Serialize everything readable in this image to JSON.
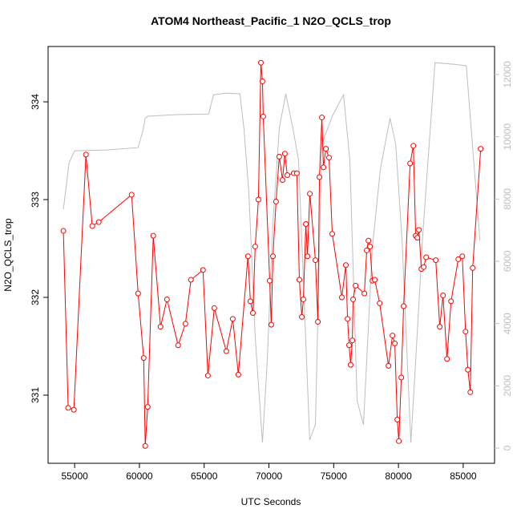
{
  "chart_data": {
    "type": "line",
    "title": "ATOM4 Northeast_Pacific_1 N2O_QCLS_trop",
    "x_label": "UTC Seconds",
    "y_label": "N2O_QCLS_trop",
    "xlim": [
      52950,
      87420
    ],
    "xticks": [
      55000,
      60000,
      65000,
      70000,
      75000,
      80000,
      85000
    ],
    "ylim": [
      330.303,
      334.566
    ],
    "yticks": [
      331,
      332,
      333,
      334
    ],
    "y2lim": [
      -490,
      12900
    ],
    "y2ticks": [
      0,
      2000,
      4000,
      6000,
      8000,
      10000,
      12000
    ],
    "series": [
      {
        "color": "#bebebe",
        "axis": "y2",
        "markers": false,
        "x": [
          54130,
          54570,
          55000,
          57480,
          59890,
          60270,
          60450,
          60640,
          62870,
          65350,
          65720,
          66710,
          67760,
          68070,
          68450,
          68940,
          69500,
          69870,
          70300,
          70800,
          71300,
          71850,
          72290,
          73150,
          73590,
          74080,
          74890,
          75760,
          76250,
          76810,
          77300,
          77980,
          78610,
          79350,
          79790,
          80280,
          80960,
          81330,
          81890,
          82820,
          84250,
          85240,
          86290
        ],
        "values": [
          7670,
          9160,
          9550,
          9575,
          9650,
          10190,
          10600,
          10660,
          10710,
          10730,
          11350,
          11400,
          11380,
          10270,
          8210,
          3580,
          180,
          2800,
          7180,
          10270,
          11380,
          10270,
          9240,
          260,
          750,
          9760,
          10660,
          11350,
          9240,
          1520,
          750,
          6410,
          8980,
          10600,
          9760,
          6670,
          180,
          2800,
          6920,
          12380,
          12330,
          12280,
          6670
        ]
      },
      {
        "color": "#ff0000",
        "markers": true,
        "x": [
          54130,
          54500,
          54940,
          55870,
          56360,
          56860,
          59400,
          59900,
          60330,
          60450,
          60640,
          61070,
          61630,
          62130,
          62990,
          63550,
          63980,
          64910,
          65290,
          65780,
          66710,
          67210,
          67640,
          68380,
          68570,
          68760,
          68940,
          69190,
          69380,
          69500,
          69560,
          70060,
          70180,
          70310,
          70550,
          70800,
          71050,
          71230,
          71420,
          71920,
          72160,
          72350,
          72540,
          72660,
          72850,
          72970,
          73160,
          73590,
          73780,
          73900,
          74090,
          74210,
          74400,
          74640,
          74890,
          75630,
          75940,
          76070,
          76190,
          76310,
          76440,
          76500,
          76690,
          77370,
          77550,
          77680,
          77800,
          77990,
          78170,
          78550,
          79230,
          79540,
          79720,
          79910,
          80030,
          80220,
          80400,
          80900,
          81150,
          81330,
          81460,
          81580,
          81770,
          81950,
          82140,
          82880,
          83190,
          83440,
          83750,
          84060,
          84620,
          84930,
          85180,
          85360,
          85550,
          85730,
          86350
        ],
        "values": [
          332.68,
          330.87,
          330.85,
          333.46,
          332.73,
          332.77,
          333.05,
          332.04,
          331.38,
          330.48,
          330.88,
          332.63,
          331.7,
          331.98,
          331.51,
          331.73,
          332.18,
          332.28,
          331.2,
          331.89,
          331.45,
          331.78,
          331.21,
          332.42,
          331.96,
          331.84,
          332.52,
          333.0,
          334.4,
          334.21,
          333.85,
          332.17,
          331.72,
          332.42,
          332.98,
          333.44,
          333.2,
          333.47,
          333.25,
          333.27,
          333.27,
          332.18,
          331.8,
          331.98,
          332.75,
          332.42,
          333.06,
          332.38,
          331.75,
          333.23,
          333.84,
          333.33,
          333.52,
          333.43,
          332.65,
          332.0,
          332.33,
          331.78,
          331.51,
          331.31,
          331.56,
          331.98,
          332.12,
          332.04,
          332.48,
          332.58,
          332.52,
          332.17,
          332.18,
          331.94,
          331.3,
          331.61,
          331.53,
          330.75,
          330.53,
          331.18,
          331.91,
          333.37,
          333.55,
          332.63,
          332.61,
          332.69,
          332.29,
          332.31,
          332.41,
          332.38,
          331.7,
          332.02,
          331.37,
          331.96,
          332.39,
          332.42,
          331.65,
          331.26,
          331.03,
          332.3,
          333.52
        ]
      }
    ]
  }
}
